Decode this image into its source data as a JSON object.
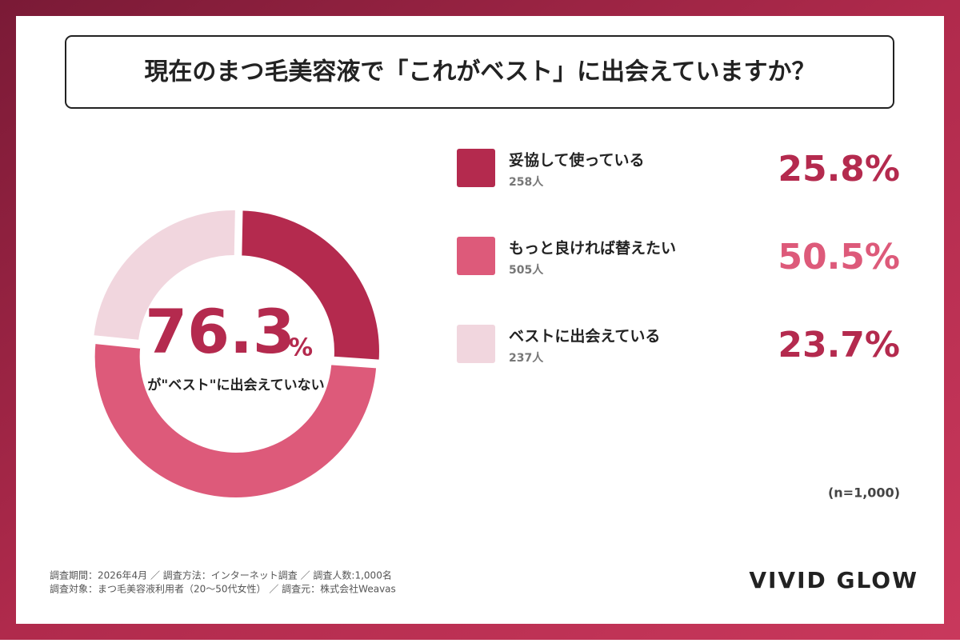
{
  "chart_data": {
    "type": "pie",
    "title": "現在のまつ毛美容液で「これがベスト」に出会えていますか？",
    "categories": [
      "妥協して使っている",
      "もっと良ければ替えたい",
      "ベストに出会えている"
    ],
    "values": [
      25.8,
      50.5,
      23.7
    ],
    "value_labels": [
      "25.8%",
      "50.5%",
      "23.7%"
    ],
    "count_labels": [
      "258人",
      "505人",
      "237人"
    ],
    "colors": [
      "#b42a4e",
      "#dd5a7a",
      "#f1d6de"
    ],
    "center_value": 76.3,
    "center_unit": "%",
    "center_caption": "が\"ベスト\"に出会えていない",
    "sample_note": "(n=1,000)",
    "footer": [
      "調査期間：2026年4月 ／ 調査方法：インターネット調査 ／ 調査人数:1,000名",
      "調査対象：まつ毛美容液利用者（20〜50代女性） ／ 調査元：株式会社Weavas"
    ],
    "brand": "VIVID GLOW"
  }
}
